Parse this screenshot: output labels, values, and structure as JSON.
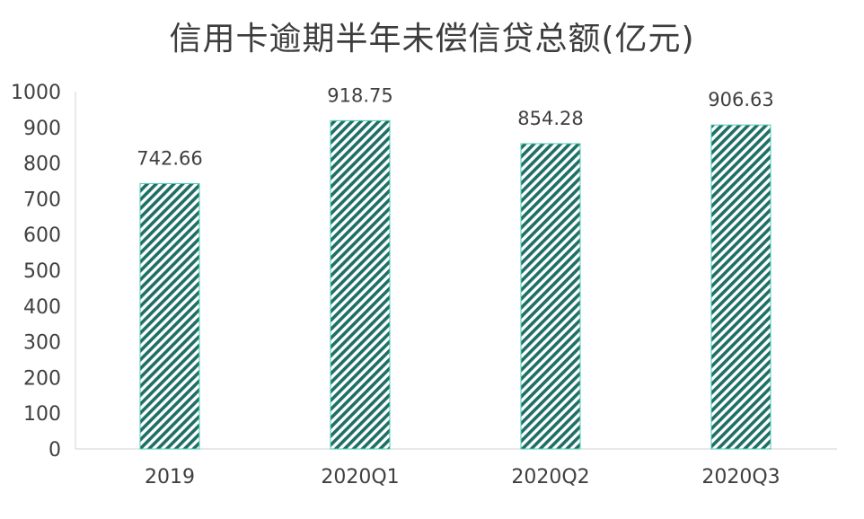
{
  "chart_data": {
    "type": "bar",
    "title": "信用卡逾期半年未偿信贷总额(亿元)",
    "categories": [
      "2019",
      "2020Q1",
      "2020Q2",
      "2020Q3"
    ],
    "values": [
      742.66,
      918.75,
      854.28,
      906.63
    ],
    "data_labels": [
      "742.66",
      "918.75",
      "854.28",
      "906.63"
    ],
    "yticks": [
      "0",
      "100",
      "200",
      "300",
      "400",
      "500",
      "600",
      "700",
      "800",
      "900",
      "1000"
    ],
    "ylim": [
      0,
      1000
    ],
    "xlabel": "",
    "ylabel": "",
    "grid": false,
    "legend": "none",
    "colors": {
      "bar_stripe": "#1f7a6e",
      "bar_accent": "#4ecdb8",
      "axis": "#d0d0d0",
      "text": "#404040"
    }
  }
}
